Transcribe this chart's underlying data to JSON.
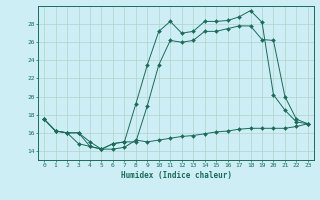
{
  "xlabel": "Humidex (Indice chaleur)",
  "bg_color": "#cdeef5",
  "grid_color": "#b0d4cc",
  "line_color": "#1a6b5a",
  "x_ticks": [
    0,
    1,
    2,
    3,
    4,
    5,
    6,
    7,
    8,
    9,
    10,
    11,
    12,
    13,
    14,
    15,
    16,
    17,
    18,
    19,
    20,
    21,
    22,
    23
  ],
  "y_ticks": [
    14,
    16,
    18,
    20,
    22,
    24,
    26,
    28
  ],
  "xlim": [
    -0.5,
    23.5
  ],
  "ylim": [
    13.0,
    30.0
  ],
  "line1_x": [
    0,
    1,
    2,
    3,
    4,
    5,
    6,
    7,
    8,
    9,
    10,
    11,
    12,
    13,
    14,
    15,
    16,
    17,
    18,
    19,
    20,
    21,
    22,
    23
  ],
  "line1_y": [
    17.5,
    16.2,
    16.0,
    14.8,
    14.5,
    14.2,
    14.2,
    14.4,
    15.2,
    15.0,
    15.2,
    15.4,
    15.6,
    15.7,
    15.9,
    16.1,
    16.2,
    16.4,
    16.5,
    16.5,
    16.5,
    16.5,
    16.7,
    17.0
  ],
  "line2_x": [
    0,
    1,
    2,
    3,
    4,
    5,
    6,
    7,
    8,
    9,
    10,
    11,
    12,
    13,
    14,
    15,
    16,
    17,
    18,
    19,
    20,
    21,
    22,
    23
  ],
  "line2_y": [
    17.5,
    16.2,
    16.0,
    16.0,
    15.0,
    14.2,
    14.8,
    15.0,
    19.2,
    23.5,
    27.2,
    28.3,
    27.0,
    27.2,
    28.3,
    28.3,
    28.4,
    28.8,
    29.5,
    28.2,
    20.2,
    18.5,
    17.2,
    17.0
  ],
  "line3_x": [
    0,
    1,
    2,
    3,
    4,
    5,
    6,
    7,
    8,
    9,
    10,
    11,
    12,
    13,
    14,
    15,
    16,
    17,
    18,
    19,
    20,
    21,
    22,
    23
  ],
  "line3_y": [
    17.5,
    16.2,
    16.0,
    16.0,
    14.5,
    14.2,
    14.8,
    15.0,
    15.0,
    19.0,
    23.5,
    26.2,
    26.0,
    26.2,
    27.2,
    27.2,
    27.5,
    27.8,
    27.8,
    26.3,
    26.2,
    20.0,
    17.5,
    17.0
  ]
}
